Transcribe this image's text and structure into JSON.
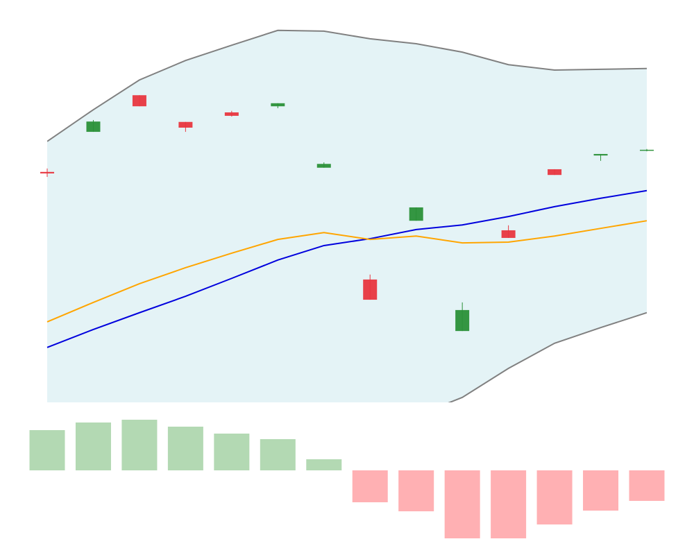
{
  "chart_data": [
    {
      "type": "candlestick",
      "ylim": [
        0,
        100
      ],
      "open": [
        60.4,
        70.9,
        80.5,
        73.5,
        76.0,
        77.6,
        61.5,
        32.2,
        47.6,
        18.7,
        45.1,
        61.1,
        64.7,
        66.0
      ],
      "high": [
        61.3,
        74.0,
        80.5,
        73.5,
        76.4,
        78.4,
        62.9,
        33.5,
        51.1,
        26.2,
        46.4,
        61.1,
        65.1,
        66.4
      ],
      "low": [
        59.1,
        70.9,
        77.6,
        70.9,
        74.9,
        77.1,
        61.5,
        26.9,
        47.6,
        18.7,
        43.1,
        59.6,
        63.3,
        65.8
      ],
      "close": [
        60.0,
        73.6,
        77.6,
        72.0,
        75.1,
        78.4,
        62.5,
        26.9,
        51.1,
        24.2,
        43.1,
        59.6,
        65.1,
        66.2
      ],
      "up_color": "#2a9038",
      "down_color": "#e8363f",
      "band": {
        "upper": [
          68.4,
          76.7,
          84.5,
          89.6,
          93.6,
          97.5,
          97.3,
          95.3,
          94.0,
          91.8,
          88.5,
          87.1,
          87.3,
          87.5
        ],
        "lower": [
          -39.6,
          -38.4,
          -37.6,
          -34.0,
          -28.5,
          -22.9,
          -15.1,
          -9.5,
          -3.5,
          1.3,
          8.9,
          15.5,
          19.6,
          23.5
        ],
        "fill": "#e4f3f6",
        "line_color": "#808080"
      },
      "lines": [
        {
          "color": "#0000dd",
          "values": [
            14.4,
            19.1,
            23.5,
            27.8,
            32.5,
            37.3,
            41.1,
            42.9,
            45.3,
            46.5,
            48.7,
            51.3,
            53.5,
            55.5
          ]
        },
        {
          "color": "#ffa500",
          "values": [
            21.1,
            26.2,
            31.1,
            35.3,
            39.1,
            42.7,
            44.5,
            42.7,
            43.6,
            41.8,
            42.0,
            43.6,
            45.6,
            47.6
          ]
        }
      ]
    },
    {
      "type": "bar",
      "ylim": [
        -10,
        10
      ],
      "values": [
        5.8,
        6.9,
        7.3,
        6.3,
        5.3,
        4.5,
        1.6,
        -4.6,
        -5.9,
        -9.8,
        -9.8,
        -7.8,
        -5.8,
        -4.4
      ],
      "up_color": "#b3d9b3",
      "down_color": "#ffb0b3"
    }
  ]
}
